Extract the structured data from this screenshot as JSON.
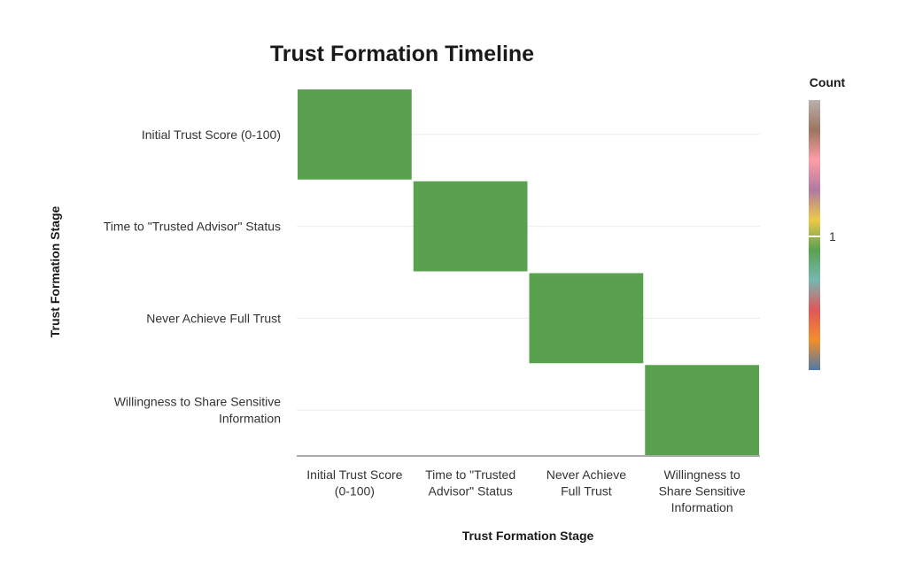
{
  "chart_data": {
    "type": "heatmap",
    "title": "Trust Formation Timeline",
    "xlabel": "Trust Formation Stage",
    "ylabel": "Trust Formation Stage",
    "x_categories": [
      "Initial Trust Score (0-100)",
      "Time to \"Trusted Advisor\" Status",
      "Never Achieve Full Trust",
      "Willingness to Share Sensitive Information"
    ],
    "y_categories": [
      "Initial Trust Score (0-100)",
      "Time to \"Trusted Advisor\" Status",
      "Never Achieve Full Trust",
      "Willingness to Share Sensitive Information"
    ],
    "x_tick_lines": [
      [
        "Initial Trust Score",
        "(0-100)"
      ],
      [
        "Time to \"Trusted",
        "Advisor\" Status"
      ],
      [
        "Never Achieve",
        "Full Trust"
      ],
      [
        "Willingness to",
        "Share Sensitive",
        "Information"
      ]
    ],
    "y_tick_lines": [
      [
        "Initial Trust Score (0-100)"
      ],
      [
        "Time to \"Trusted Advisor\" Status"
      ],
      [
        "Never Achieve Full Trust"
      ],
      [
        "Willingness to Share Sensitive",
        "Information"
      ]
    ],
    "cells": [
      {
        "x": "Initial Trust Score (0-100)",
        "y": "Initial Trust Score (0-100)",
        "value": 1
      },
      {
        "x": "Time to \"Trusted Advisor\" Status",
        "y": "Time to \"Trusted Advisor\" Status",
        "value": 1
      },
      {
        "x": "Never Achieve Full Trust",
        "y": "Never Achieve Full Trust",
        "value": 1
      },
      {
        "x": "Willingness to Share Sensitive Information",
        "y": "Willingness to Share Sensitive Information",
        "value": 1
      }
    ],
    "cell_color": "#59a14f",
    "legend": {
      "title": "Count",
      "ticks": [
        1
      ],
      "placement": "right",
      "colors": [
        "#4e79a7",
        "#f28e2b",
        "#e15759",
        "#76b7b2",
        "#59a14f",
        "#edc948",
        "#b07aa1",
        "#ff9da7",
        "#9c755f",
        "#bab0ac"
      ]
    },
    "grid": true
  }
}
